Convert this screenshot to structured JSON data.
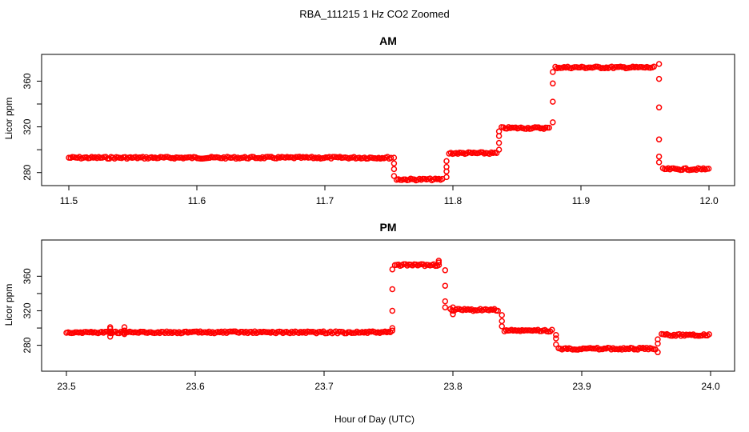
{
  "figure": {
    "title": "RBA_111215  1 Hz CO2 Zoomed",
    "xlabel": "Hour of Day (UTC)",
    "point_color": "#ff0000"
  },
  "chart_data": [
    {
      "type": "scatter",
      "title": "AM",
      "ylabel": "Licor ppm",
      "x_range": [
        11.5,
        12.0
      ],
      "x_ticks": [
        "11.5",
        "11.6",
        "11.7",
        "11.8",
        "11.9",
        "12.0"
      ],
      "y_range": [
        270,
        382
      ],
      "y_ticks": [
        "280",
        "320",
        "360"
      ],
      "segments": [
        {
          "x": [
            11.5,
            11.752
          ],
          "y": 293
        },
        {
          "x": [
            11.756,
            11.793
          ],
          "y": 274
        },
        {
          "x": [
            11.797,
            11.835
          ],
          "y": 297
        },
        {
          "x": [
            11.838,
            11.876
          ],
          "y": 319
        },
        {
          "x": [
            11.88,
            11.958
          ],
          "y": 372
        },
        {
          "x": [
            11.964,
            12.0
          ],
          "y": 283
        }
      ],
      "transitions": [
        {
          "x": 11.754,
          "y": [
            293,
            288,
            283,
            277
          ]
        },
        {
          "x": 11.795,
          "y": [
            276,
            281,
            285,
            290
          ]
        },
        {
          "x": 11.836,
          "y": [
            300,
            306,
            312,
            316
          ]
        },
        {
          "x": 11.878,
          "y": [
            324,
            342,
            358,
            368
          ]
        },
        {
          "x": 11.961,
          "y": [
            375,
            362,
            337,
            309,
            294,
            289
          ]
        }
      ]
    },
    {
      "type": "scatter",
      "title": "PM",
      "ylabel": "Licor ppm",
      "x_range": [
        23.5,
        24.0
      ],
      "x_ticks": [
        "23.5",
        "23.6",
        "23.7",
        "23.8",
        "23.9",
        "24.0"
      ],
      "y_range": [
        250,
        402
      ],
      "y_ticks": [
        "280",
        "320",
        "360"
      ],
      "segments": [
        {
          "x": [
            23.5,
            23.752
          ],
          "y": 295
        },
        {
          "x": [
            23.755,
            23.79
          ],
          "y": 373
        },
        {
          "x": [
            23.798,
            23.836
          ],
          "y": 321
        },
        {
          "x": [
            23.84,
            23.878
          ],
          "y": 297
        },
        {
          "x": [
            23.882,
            23.958
          ],
          "y": 276
        },
        {
          "x": [
            23.962,
            24.0
          ],
          "y": 292
        }
      ],
      "transitions": [
        {
          "x": 23.534,
          "y": [
            290,
            301,
            296,
            299
          ]
        },
        {
          "x": 23.545,
          "y": [
            301,
            293,
            297
          ]
        },
        {
          "x": 23.753,
          "y": [
            297,
            300,
            320,
            345,
            368
          ]
        },
        {
          "x": 23.789,
          "y": [
            378,
            376
          ]
        },
        {
          "x": 23.794,
          "y": [
            367,
            349,
            331,
            324
          ]
        },
        {
          "x": 23.8,
          "y": [
            316,
            324
          ]
        },
        {
          "x": 23.838,
          "y": [
            315,
            308,
            302
          ]
        },
        {
          "x": 23.88,
          "y": [
            292,
            288,
            281
          ]
        },
        {
          "x": 23.959,
          "y": [
            272,
            282,
            287
          ]
        }
      ]
    }
  ]
}
